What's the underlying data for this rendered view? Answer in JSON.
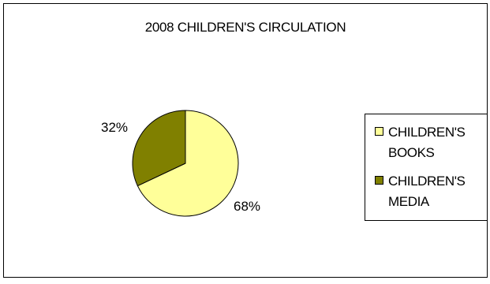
{
  "chart_data": {
    "type": "pie",
    "title": "2008 CHILDREN'S CIRCULATION",
    "categories": [
      "CHILDREN'S BOOKS",
      "CHILDREN'S MEDIA"
    ],
    "values": [
      68,
      32
    ],
    "data_labels": [
      "68%",
      "32%"
    ],
    "legend_placement": "right",
    "legend_lines": [
      [
        "CHILDREN'S",
        "BOOKS"
      ],
      [
        "CHILDREN'S",
        "MEDIA"
      ]
    ]
  },
  "colors": {
    "books": "#FFFF99",
    "media": "#808000",
    "outline": "#000000"
  }
}
